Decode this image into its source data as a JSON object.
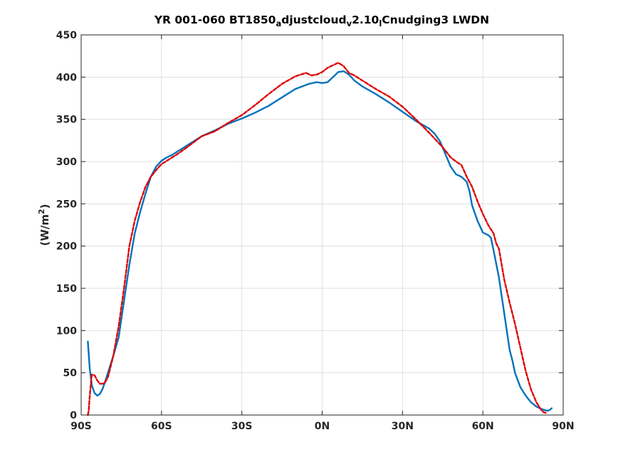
{
  "chart_data": {
    "type": "line",
    "title": {
      "parts": [
        {
          "text": "YR 001-060 BT1850",
          "sub": false
        },
        {
          "text": "a",
          "sub": true
        },
        {
          "text": "djustcloud",
          "sub": false
        },
        {
          "text": "v",
          "sub": true
        },
        {
          "text": "2.10",
          "sub": false
        },
        {
          "text": "l",
          "sub": true
        },
        {
          "text": "Cnudging3 LWDN",
          "sub": false
        }
      ]
    },
    "xlabel": "",
    "ylabel": {
      "base": "(W/m",
      "sup": "2",
      "close": ")"
    },
    "xlim": [
      -90,
      90
    ],
    "ylim": [
      0,
      450
    ],
    "xticks": [
      -90,
      -60,
      -30,
      0,
      30,
      60,
      90
    ],
    "xtick_labels": [
      "90S",
      "60S",
      "30S",
      "0N",
      "30N",
      "60N",
      "90N"
    ],
    "yticks": [
      0,
      50,
      100,
      150,
      200,
      250,
      300,
      350,
      400,
      450
    ],
    "ytick_labels": [
      "0",
      "50",
      "100",
      "150",
      "200",
      "250",
      "300",
      "350",
      "400",
      "450"
    ],
    "grid": true,
    "legend": "none",
    "series": [
      {
        "color": "#0072bd",
        "style": "solid",
        "points": [
          [
            -87.5,
            87
          ],
          [
            -86.8,
            55
          ],
          [
            -86,
            35
          ],
          [
            -85,
            26
          ],
          [
            -84,
            23
          ],
          [
            -83,
            25
          ],
          [
            -82,
            31
          ],
          [
            -81,
            40
          ],
          [
            -80,
            50
          ],
          [
            -78,
            70
          ],
          [
            -76,
            92
          ],
          [
            -74,
            135
          ],
          [
            -72,
            178
          ],
          [
            -70,
            215
          ],
          [
            -68,
            240
          ],
          [
            -66,
            262
          ],
          [
            -64,
            282
          ],
          [
            -62,
            294
          ],
          [
            -60,
            301
          ],
          [
            -58,
            305
          ],
          [
            -56,
            308
          ],
          [
            -54,
            312
          ],
          [
            -50,
            320
          ],
          [
            -45,
            330
          ],
          [
            -40,
            337
          ],
          [
            -35,
            345
          ],
          [
            -30,
            351
          ],
          [
            -25,
            358
          ],
          [
            -20,
            366
          ],
          [
            -15,
            376
          ],
          [
            -10,
            386
          ],
          [
            -5,
            392
          ],
          [
            -2,
            394
          ],
          [
            0,
            393
          ],
          [
            2,
            394
          ],
          [
            4,
            400
          ],
          [
            6,
            406
          ],
          [
            8,
            407
          ],
          [
            10,
            403
          ],
          [
            12,
            396
          ],
          [
            15,
            389
          ],
          [
            20,
            380
          ],
          [
            25,
            370
          ],
          [
            30,
            359
          ],
          [
            35,
            348
          ],
          [
            40,
            339
          ],
          [
            42,
            333
          ],
          [
            44,
            324
          ],
          [
            46,
            309
          ],
          [
            48,
            294
          ],
          [
            50,
            285
          ],
          [
            52,
            282
          ],
          [
            54,
            276
          ],
          [
            55,
            265
          ],
          [
            56,
            248
          ],
          [
            58,
            230
          ],
          [
            60,
            216
          ],
          [
            62,
            213
          ],
          [
            63,
            210
          ],
          [
            64,
            195
          ],
          [
            66,
            163
          ],
          [
            68,
            120
          ],
          [
            70,
            77
          ],
          [
            71,
            65
          ],
          [
            72,
            50
          ],
          [
            74,
            33
          ],
          [
            76,
            23
          ],
          [
            78,
            15
          ],
          [
            80,
            10
          ],
          [
            82,
            7
          ],
          [
            84,
            5
          ],
          [
            85,
            6
          ],
          [
            85.7,
            8
          ]
        ]
      },
      {
        "color": "#e00000",
        "style": "dashed",
        "points": [
          [
            -87.5,
            0
          ],
          [
            -87.2,
            5
          ],
          [
            -86.8,
            22
          ],
          [
            -86.3,
            40
          ],
          [
            -86,
            48
          ],
          [
            -85,
            47
          ],
          [
            -84,
            41
          ],
          [
            -83,
            37
          ],
          [
            -82,
            37
          ],
          [
            -81,
            39
          ],
          [
            -80,
            45
          ],
          [
            -78,
            70
          ],
          [
            -76,
            105
          ],
          [
            -74,
            150
          ],
          [
            -72,
            200
          ],
          [
            -70,
            230
          ],
          [
            -68,
            252
          ],
          [
            -66,
            270
          ],
          [
            -64,
            282
          ],
          [
            -62,
            290
          ],
          [
            -60,
            297
          ],
          [
            -58,
            301
          ],
          [
            -56,
            305
          ],
          [
            -54,
            309
          ],
          [
            -50,
            318
          ],
          [
            -45,
            330
          ],
          [
            -40,
            336
          ],
          [
            -35,
            346
          ],
          [
            -30,
            355
          ],
          [
            -25,
            367
          ],
          [
            -20,
            380
          ],
          [
            -15,
            392
          ],
          [
            -10,
            401
          ],
          [
            -6,
            405
          ],
          [
            -4,
            402
          ],
          [
            -2,
            403
          ],
          [
            0,
            406
          ],
          [
            2,
            411
          ],
          [
            4,
            414
          ],
          [
            6,
            417
          ],
          [
            8,
            413
          ],
          [
            10,
            405
          ],
          [
            12,
            402
          ],
          [
            15,
            396
          ],
          [
            20,
            386
          ],
          [
            25,
            377
          ],
          [
            30,
            365
          ],
          [
            35,
            350
          ],
          [
            40,
            334
          ],
          [
            45,
            317
          ],
          [
            48,
            305
          ],
          [
            50,
            300
          ],
          [
            52,
            296
          ],
          [
            54,
            282
          ],
          [
            56,
            270
          ],
          [
            58,
            253
          ],
          [
            60,
            238
          ],
          [
            62,
            225
          ],
          [
            64,
            215
          ],
          [
            65,
            203
          ],
          [
            66,
            197
          ],
          [
            68,
            160
          ],
          [
            70,
            133
          ],
          [
            72,
            108
          ],
          [
            74,
            80
          ],
          [
            76,
            52
          ],
          [
            78,
            30
          ],
          [
            80,
            15
          ],
          [
            82,
            5
          ],
          [
            83,
            3
          ],
          [
            84,
            2
          ]
        ]
      }
    ]
  }
}
